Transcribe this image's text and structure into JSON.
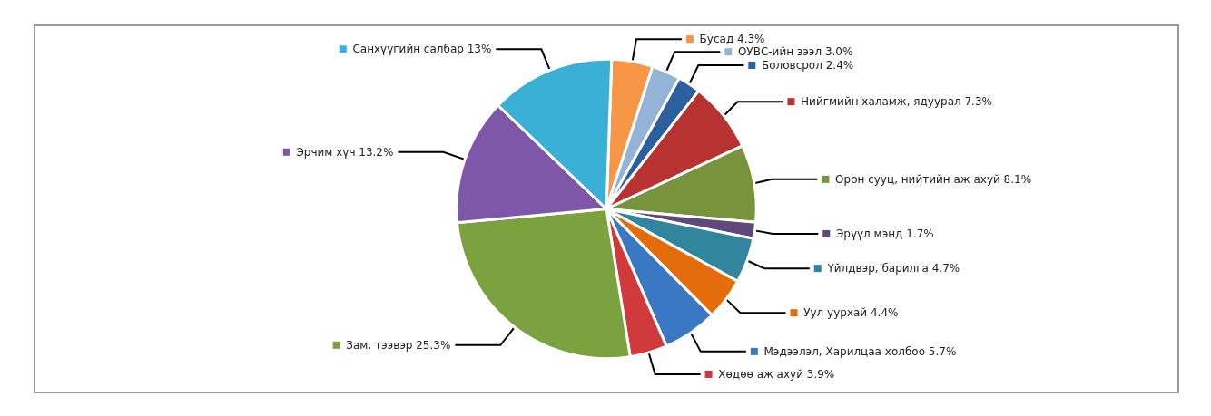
{
  "chart_data": {
    "type": "pie",
    "legend": "right",
    "categories": [
      "Бусад",
      "ОУВС-ийн зээл",
      "Боловсрол",
      "Нийгмийн халамж, ядуурал",
      "Орон сууц, нийтийн аж ахуй",
      "Эрүүл мэнд",
      "Үйлдвэр, барилга",
      "Уул уурхай",
      "Мэдээлэл, Харилцаа холбоо",
      "Хөдөө аж ахуй",
      "Зам, тээвэр",
      "Эрчим хүч",
      "Санхүүгийн салбар"
    ],
    "values": [
      4.3,
      3.0,
      2.4,
      7.3,
      8.1,
      1.7,
      4.7,
      4.4,
      5.7,
      3.9,
      25.3,
      13.2,
      13
    ],
    "value_labels": [
      "4.3%",
      "3.0%",
      "2.4%",
      "7.3%",
      "8.1%",
      "1.7%",
      "4.7%",
      "4.4%",
      "5.7%",
      "3.9%",
      "25.3%",
      "13.2%",
      "13%"
    ],
    "colors": [
      "#f79646",
      "#95b3d7",
      "#2c5f9e",
      "#b83232",
      "#77933c",
      "#60497a",
      "#31859c",
      "#e46c0a",
      "#3a78c3",
      "#d03a3a",
      "#7ba23f",
      "#7e57a8",
      "#3ab0d6"
    ]
  }
}
